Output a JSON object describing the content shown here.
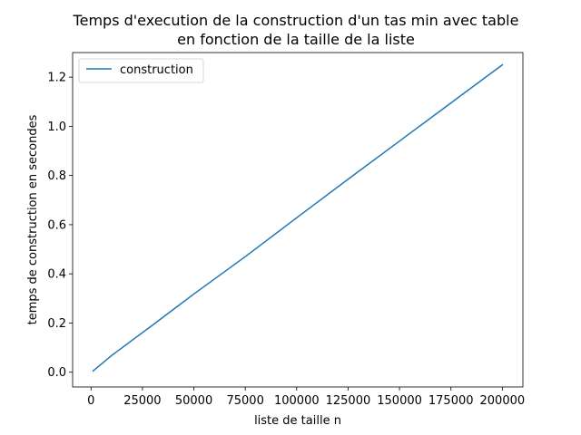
{
  "chart_data": {
    "type": "line",
    "title": "Temps d'execution de la construction d'un tas min avec table\nen fonction de la taille de la liste",
    "xlabel": "liste de taille n",
    "ylabel": "temps de construction en secondes",
    "xlim": [
      -8950,
      210000
    ],
    "ylim": [
      -0.06,
      1.3
    ],
    "xticks": [
      0,
      25000,
      50000,
      75000,
      100000,
      125000,
      150000,
      175000,
      200000
    ],
    "yticks": [
      0.0,
      0.2,
      0.4,
      0.6,
      0.8,
      1.0,
      1.2
    ],
    "ytick_labels": [
      "0.0",
      "0.2",
      "0.4",
      "0.6",
      "0.8",
      "1.0",
      "1.2"
    ],
    "grid": false,
    "legend": "top-left",
    "colors": {
      "series": "#1f77b4"
    },
    "series": [
      {
        "name": "construction",
        "x": [
          1000,
          10000,
          20000,
          30000,
          40000,
          50000,
          75000,
          100000,
          125000,
          150000,
          175000,
          200000
        ],
        "y": [
          0.005,
          0.068,
          0.13,
          0.192,
          0.255,
          0.318,
          0.47,
          0.628,
          0.785,
          0.94,
          1.095,
          1.25
        ]
      }
    ]
  }
}
